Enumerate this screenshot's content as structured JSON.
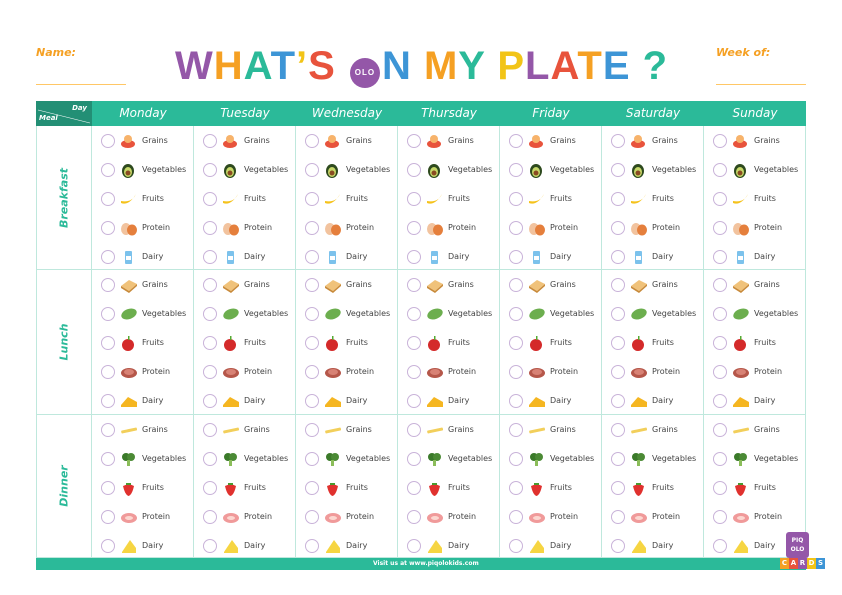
{
  "header": {
    "name_label": "Name:",
    "week_label": "Week of:",
    "title_parts": [
      {
        "t": "W",
        "c": "#9457a8"
      },
      {
        "t": "H",
        "c": "#f5a023"
      },
      {
        "t": "A",
        "c": "#2bba99"
      },
      {
        "t": "T",
        "c": "#3d95d6"
      },
      {
        "t": "’",
        "c": "#f2c417"
      },
      {
        "t": "S ",
        "c": "#e8533c"
      },
      {
        "t": "OLO",
        "c": "logo"
      },
      {
        "t": "N ",
        "c": "#3d95d6"
      },
      {
        "t": "M",
        "c": "#f5a023"
      },
      {
        "t": "Y ",
        "c": "#2bba99"
      },
      {
        "t": "P",
        "c": "#f2c417"
      },
      {
        "t": "L",
        "c": "#9457a8"
      },
      {
        "t": "A",
        "c": "#e8533c"
      },
      {
        "t": "T",
        "c": "#f5a023"
      },
      {
        "t": "E",
        "c": "#3d95d6"
      },
      {
        "t": " ?",
        "c": "#2bba99"
      }
    ]
  },
  "corner": {
    "day": "Day",
    "meal": "Meal"
  },
  "days": [
    "Monday",
    "Tuesday",
    "Wednesday",
    "Thursday",
    "Friday",
    "Saturday",
    "Sunday"
  ],
  "meals": [
    {
      "name": "Breakfast",
      "items": [
        {
          "label": "Grains",
          "icon": "cereal-bowl"
        },
        {
          "label": "Vegetables",
          "icon": "avocado"
        },
        {
          "label": "Fruits",
          "icon": "banana"
        },
        {
          "label": "Protein",
          "icon": "eggs"
        },
        {
          "label": "Dairy",
          "icon": "milk"
        }
      ]
    },
    {
      "name": "Lunch",
      "items": [
        {
          "label": "Grains",
          "icon": "sandwich"
        },
        {
          "label": "Vegetables",
          "icon": "lettuce"
        },
        {
          "label": "Fruits",
          "icon": "apple"
        },
        {
          "label": "Protein",
          "icon": "meat"
        },
        {
          "label": "Dairy",
          "icon": "cheese"
        }
      ]
    },
    {
      "name": "Dinner",
      "items": [
        {
          "label": "Grains",
          "icon": "pasta"
        },
        {
          "label": "Vegetables",
          "icon": "broccoli"
        },
        {
          "label": "Fruits",
          "icon": "strawberry"
        },
        {
          "label": "Protein",
          "icon": "ham"
        },
        {
          "label": "Dairy",
          "icon": "cheese-wedge"
        }
      ]
    }
  ],
  "footer": {
    "text": "Visit us at www.piqolokids.com"
  },
  "logo": {
    "text": "PIQ OLO",
    "cards": [
      "C",
      "A",
      "R",
      "D",
      "S"
    ]
  },
  "colors": {
    "accent": "#2bba99",
    "orange": "#f5a023"
  }
}
